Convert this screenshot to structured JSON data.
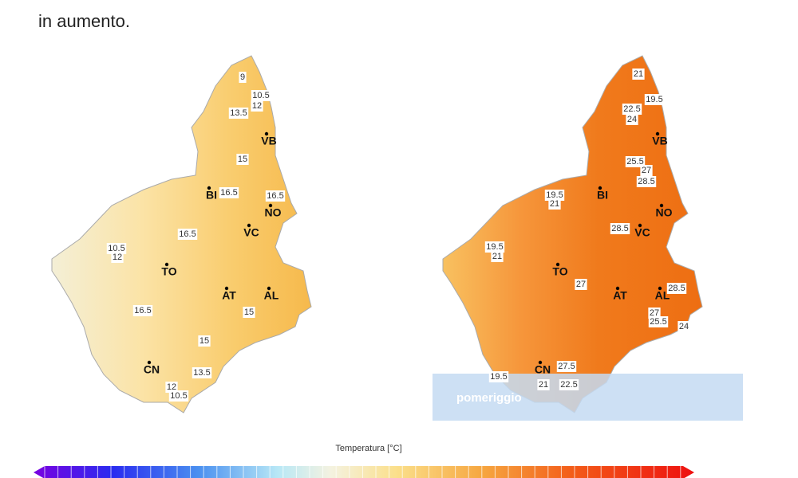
{
  "text": "in aumento.",
  "maps": [
    {
      "cities": [
        "VB",
        "BI",
        "NO",
        "VC",
        "TO",
        "AT",
        "AL",
        "CN"
      ],
      "labels": [
        9,
        10.5,
        12,
        13.5,
        15,
        16.5,
        16.5,
        16.5,
        10.5,
        12,
        16.5,
        15,
        15,
        13.5,
        12,
        10.5
      ]
    },
    {
      "cities": [
        "VB",
        "BI",
        "NO",
        "VC",
        "TO",
        "AT",
        "AL",
        "CN"
      ],
      "labels": [
        21,
        19.5,
        22.5,
        24,
        25.5,
        27,
        28.5,
        19.5,
        21,
        28.5,
        19.5,
        21,
        27,
        28.5,
        27,
        25.5,
        24,
        27.5,
        19.5,
        21,
        22.5
      ],
      "overlay": "pomeriggio"
    }
  ],
  "colorbar": {
    "title": "Temperatura [°C]"
  }
}
